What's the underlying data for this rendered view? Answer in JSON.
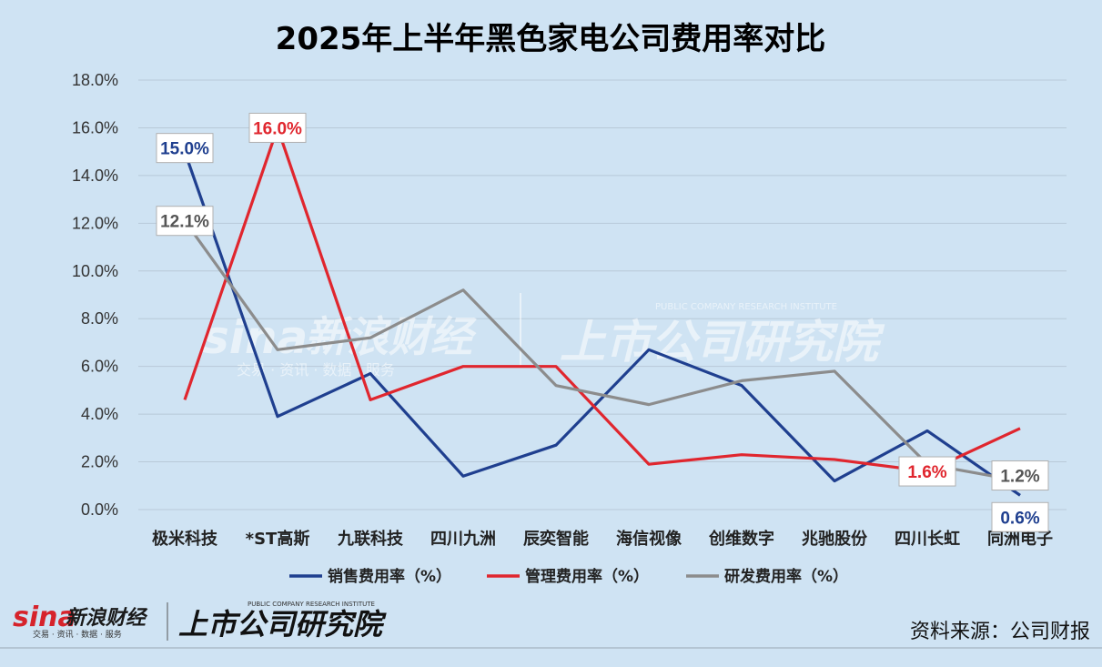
{
  "chart_data": {
    "type": "line",
    "title": "2025年上半年黑色家电公司费用率对比",
    "categories": [
      "极米科技",
      "*ST高斯",
      "九联科技",
      "四川九洲",
      "辰奕智能",
      "海信视像",
      "创维数字",
      "兆驰股份",
      "四川长虹",
      "同洲电子"
    ],
    "ylim": [
      0,
      18
    ],
    "yticks": [
      "0.0%",
      "2.0%",
      "4.0%",
      "6.0%",
      "8.0%",
      "10.0%",
      "12.0%",
      "14.0%",
      "16.0%",
      "18.0%"
    ],
    "grid": true,
    "legend_position": "bottom",
    "series": [
      {
        "name": "销售费用率（%）",
        "color": "#1f3f8f",
        "values": [
          15.0,
          3.9,
          5.7,
          1.4,
          2.7,
          6.7,
          5.2,
          1.2,
          3.3,
          0.6
        ]
      },
      {
        "name": "管理费用率（%）",
        "color": "#e0262e",
        "values": [
          4.6,
          16.0,
          4.6,
          6.0,
          6.0,
          1.9,
          2.3,
          2.1,
          1.6,
          3.4
        ]
      },
      {
        "name": "研发费用率（%）",
        "color": "#8c8c8c",
        "values": [
          12.1,
          6.7,
          7.2,
          9.2,
          5.2,
          4.4,
          5.4,
          5.8,
          1.9,
          1.2
        ]
      }
    ],
    "data_labels": [
      {
        "series": 0,
        "index": 0,
        "text": "15.0%"
      },
      {
        "series": 1,
        "index": 1,
        "text": "16.0%"
      },
      {
        "series": 2,
        "index": 0,
        "text": "12.1%"
      },
      {
        "series": 1,
        "index": 8,
        "text": "1.6%"
      },
      {
        "series": 2,
        "index": 9,
        "text": "1.2%"
      },
      {
        "series": 0,
        "index": 9,
        "text": "0.6%"
      }
    ]
  },
  "source_text": "资料来源：公司财报",
  "logos": {
    "sina": "sina",
    "sina_brand": "新浪财经",
    "sina_sub": "交易 · 资讯 · 数据 · 服务",
    "institute": "上市公司研究院",
    "institute_en": "PUBLIC COMPANY RESEARCH INSTITUTE"
  }
}
